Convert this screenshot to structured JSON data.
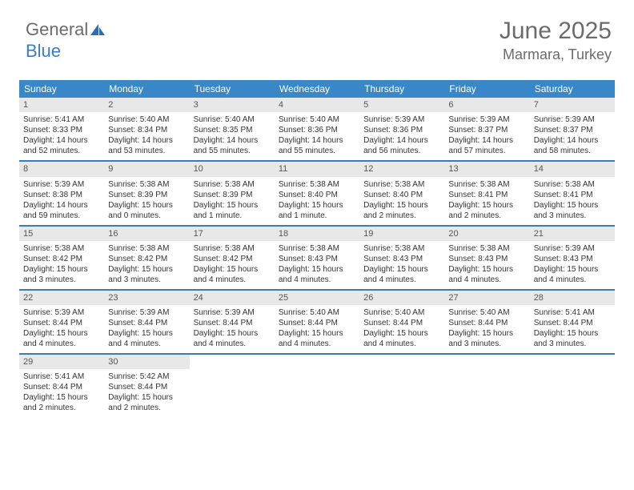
{
  "logo": {
    "text1": "General",
    "text2": "Blue"
  },
  "header": {
    "month": "June 2025",
    "location": "Marmara, Turkey"
  },
  "colors": {
    "header_bg": "#3a87c7",
    "header_text": "#ffffff",
    "daynum_bg": "#e8e8e8",
    "border": "#3a7cb8",
    "text": "#333333",
    "muted": "#6b6b6b"
  },
  "weekdays": [
    "Sunday",
    "Monday",
    "Tuesday",
    "Wednesday",
    "Thursday",
    "Friday",
    "Saturday"
  ],
  "weeks": [
    [
      {
        "n": "1",
        "sr": "5:41 AM",
        "ss": "8:33 PM",
        "dl": "14 hours and 52 minutes."
      },
      {
        "n": "2",
        "sr": "5:40 AM",
        "ss": "8:34 PM",
        "dl": "14 hours and 53 minutes."
      },
      {
        "n": "3",
        "sr": "5:40 AM",
        "ss": "8:35 PM",
        "dl": "14 hours and 55 minutes."
      },
      {
        "n": "4",
        "sr": "5:40 AM",
        "ss": "8:36 PM",
        "dl": "14 hours and 55 minutes."
      },
      {
        "n": "5",
        "sr": "5:39 AM",
        "ss": "8:36 PM",
        "dl": "14 hours and 56 minutes."
      },
      {
        "n": "6",
        "sr": "5:39 AM",
        "ss": "8:37 PM",
        "dl": "14 hours and 57 minutes."
      },
      {
        "n": "7",
        "sr": "5:39 AM",
        "ss": "8:37 PM",
        "dl": "14 hours and 58 minutes."
      }
    ],
    [
      {
        "n": "8",
        "sr": "5:39 AM",
        "ss": "8:38 PM",
        "dl": "14 hours and 59 minutes."
      },
      {
        "n": "9",
        "sr": "5:38 AM",
        "ss": "8:39 PM",
        "dl": "15 hours and 0 minutes."
      },
      {
        "n": "10",
        "sr": "5:38 AM",
        "ss": "8:39 PM",
        "dl": "15 hours and 1 minute."
      },
      {
        "n": "11",
        "sr": "5:38 AM",
        "ss": "8:40 PM",
        "dl": "15 hours and 1 minute."
      },
      {
        "n": "12",
        "sr": "5:38 AM",
        "ss": "8:40 PM",
        "dl": "15 hours and 2 minutes."
      },
      {
        "n": "13",
        "sr": "5:38 AM",
        "ss": "8:41 PM",
        "dl": "15 hours and 2 minutes."
      },
      {
        "n": "14",
        "sr": "5:38 AM",
        "ss": "8:41 PM",
        "dl": "15 hours and 3 minutes."
      }
    ],
    [
      {
        "n": "15",
        "sr": "5:38 AM",
        "ss": "8:42 PM",
        "dl": "15 hours and 3 minutes."
      },
      {
        "n": "16",
        "sr": "5:38 AM",
        "ss": "8:42 PM",
        "dl": "15 hours and 3 minutes."
      },
      {
        "n": "17",
        "sr": "5:38 AM",
        "ss": "8:42 PM",
        "dl": "15 hours and 4 minutes."
      },
      {
        "n": "18",
        "sr": "5:38 AM",
        "ss": "8:43 PM",
        "dl": "15 hours and 4 minutes."
      },
      {
        "n": "19",
        "sr": "5:38 AM",
        "ss": "8:43 PM",
        "dl": "15 hours and 4 minutes."
      },
      {
        "n": "20",
        "sr": "5:38 AM",
        "ss": "8:43 PM",
        "dl": "15 hours and 4 minutes."
      },
      {
        "n": "21",
        "sr": "5:39 AM",
        "ss": "8:43 PM",
        "dl": "15 hours and 4 minutes."
      }
    ],
    [
      {
        "n": "22",
        "sr": "5:39 AM",
        "ss": "8:44 PM",
        "dl": "15 hours and 4 minutes."
      },
      {
        "n": "23",
        "sr": "5:39 AM",
        "ss": "8:44 PM",
        "dl": "15 hours and 4 minutes."
      },
      {
        "n": "24",
        "sr": "5:39 AM",
        "ss": "8:44 PM",
        "dl": "15 hours and 4 minutes."
      },
      {
        "n": "25",
        "sr": "5:40 AM",
        "ss": "8:44 PM",
        "dl": "15 hours and 4 minutes."
      },
      {
        "n": "26",
        "sr": "5:40 AM",
        "ss": "8:44 PM",
        "dl": "15 hours and 4 minutes."
      },
      {
        "n": "27",
        "sr": "5:40 AM",
        "ss": "8:44 PM",
        "dl": "15 hours and 3 minutes."
      },
      {
        "n": "28",
        "sr": "5:41 AM",
        "ss": "8:44 PM",
        "dl": "15 hours and 3 minutes."
      }
    ],
    [
      {
        "n": "29",
        "sr": "5:41 AM",
        "ss": "8:44 PM",
        "dl": "15 hours and 2 minutes."
      },
      {
        "n": "30",
        "sr": "5:42 AM",
        "ss": "8:44 PM",
        "dl": "15 hours and 2 minutes."
      },
      null,
      null,
      null,
      null,
      null
    ]
  ],
  "labels": {
    "sunrise": "Sunrise:",
    "sunset": "Sunset:",
    "daylight": "Daylight:"
  }
}
